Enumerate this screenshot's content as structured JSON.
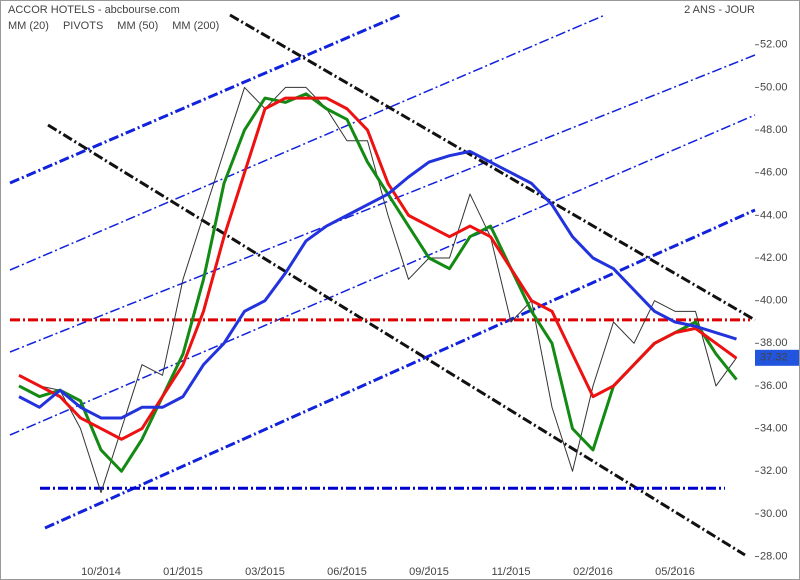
{
  "chart_data": {
    "type": "line",
    "title": "ACCOR HOTELS - abcbourse.com",
    "period": "2 ANS - JOUR",
    "pivots_label": "PIVOTS",
    "pivots": [
      {
        "value": 39.1,
        "color": "#dd0000"
      },
      {
        "value": 31.2,
        "color": "#0000cc"
      }
    ],
    "categories": [
      null,
      null,
      null,
      null,
      "10/2014",
      null,
      null,
      null,
      "01/2015",
      null,
      null,
      null,
      "03/2015",
      null,
      null,
      null,
      "06/2015",
      null,
      null,
      null,
      "09/2015",
      null,
      null,
      null,
      "11/2015",
      null,
      null,
      null,
      "02/2016",
      null,
      null,
      null,
      "05/2016",
      null,
      null,
      null
    ],
    "price": {
      "color": "#333333",
      "values": [
        36.5,
        36,
        35.8,
        34,
        31,
        34,
        37,
        36.5,
        41,
        44,
        47,
        50,
        49,
        50,
        50,
        49,
        47.5,
        47.5,
        44,
        41,
        42,
        42,
        45,
        43,
        39,
        40,
        35,
        32,
        36,
        39,
        38,
        40,
        39.5,
        39.5,
        36,
        37.32
      ],
      "last": 37.32
    },
    "series": [
      {
        "name": "MM (20)",
        "color": "#138a13",
        "values": [
          36,
          35.5,
          35.8,
          35.3,
          33,
          32,
          33.5,
          35.5,
          37.5,
          41,
          45.5,
          48,
          49.5,
          49.3,
          49.7,
          49,
          48.5,
          46.5,
          45,
          43.5,
          42,
          41.5,
          43,
          43.5,
          41.5,
          39.5,
          38,
          34,
          33,
          36,
          37,
          38,
          38.5,
          39,
          37.5,
          36.3
        ]
      },
      {
        "name": "MM (50)",
        "color": "#ee1111",
        "values": [
          36.5,
          36,
          35.5,
          34.5,
          34,
          33.5,
          34,
          35.5,
          37,
          39.5,
          43,
          46,
          49,
          49.5,
          49.5,
          49.5,
          49,
          48,
          45.5,
          44,
          43.5,
          43,
          43.5,
          43,
          41.5,
          40,
          39.5,
          37.5,
          35.5,
          36,
          37,
          38,
          38.5,
          38.7,
          38,
          37.3
        ]
      },
      {
        "name": "MM (200)",
        "color": "#2233dd",
        "values": [
          35.5,
          35,
          35.8,
          35,
          34.5,
          34.5,
          35,
          35,
          35.5,
          37,
          38,
          39.5,
          40,
          41.3,
          42.8,
          43.5,
          44,
          44.5,
          45,
          45.8,
          46.5,
          46.8,
          47,
          46.5,
          46,
          45.5,
          44.5,
          43,
          42,
          41.5,
          40.5,
          39.5,
          39,
          38.8,
          38.5,
          38.2
        ]
      }
    ],
    "ylim": [
      26.9,
      54.1
    ],
    "yticks": [
      {
        "value": 28,
        "label": "28.00"
      },
      {
        "value": 30,
        "label": "30.00"
      },
      {
        "value": 32,
        "label": "32.00"
      },
      {
        "value": 34,
        "label": "34.00"
      },
      {
        "value": 36,
        "label": "36.00"
      },
      {
        "value": 38,
        "label": "38.00"
      },
      {
        "value": 40,
        "label": "40.00"
      },
      {
        "value": 42,
        "label": "42.00"
      },
      {
        "value": 44,
        "label": "44.00"
      },
      {
        "value": 46,
        "label": "46.00"
      },
      {
        "value": 48,
        "label": "48.00"
      },
      {
        "value": 50,
        "label": "50.00"
      },
      {
        "value": 52,
        "label": "52.00"
      }
    ]
  }
}
